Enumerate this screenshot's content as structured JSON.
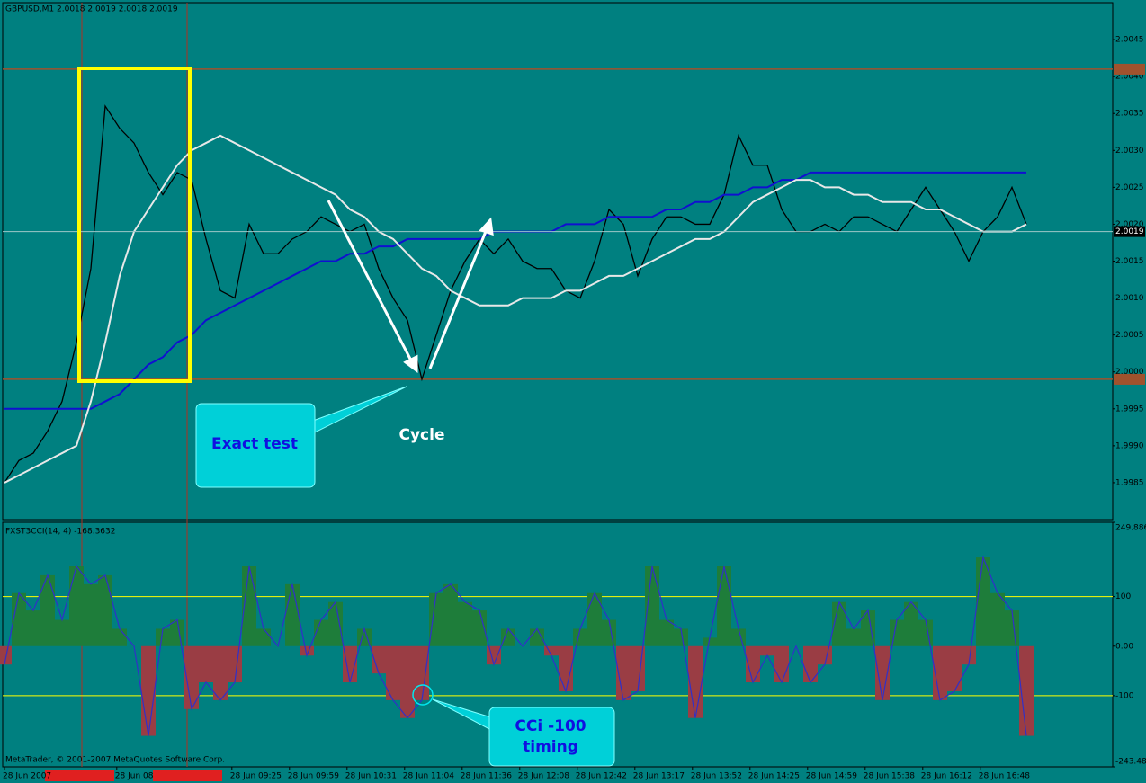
{
  "chart_data": [
    {
      "type": "line",
      "title": "GBPUSD,M1  2.0018 2.0019 2.0018 2.0019",
      "xlim": [
        0,
        77
      ],
      "ylim": [
        1.998,
        2.005
      ],
      "yticks": [
        1.9985,
        {
          "value": 1.999,
          "label": "1.9990"
        },
        1.9995,
        {
          "value": 2,
          "label": "2.0000"
        },
        2.0005,
        {
          "value": 2.001,
          "label": "2.0010"
        },
        2.0015,
        {
          "value": 2.002,
          "label": "2.0020"
        },
        2.0025,
        {
          "value": 2.003,
          "label": "2.0030"
        },
        2.0035,
        {
          "value": 2.004,
          "label": "2.0040"
        },
        2.0045
      ],
      "xticks": [
        {
          "value": 0,
          "label": "28 Jun 2007"
        },
        {
          "value": 7.8,
          "label": "28 Jun 08"
        },
        {
          "value": 15.8,
          "label": "28 Jun 09:25"
        },
        {
          "value": 19.8,
          "label": "28 Jun 09:59"
        },
        {
          "value": 23.8,
          "label": "28 Jun 10:31"
        },
        {
          "value": 27.8,
          "label": "28 Jun 11:04"
        },
        {
          "value": 31.8,
          "label": "28 Jun 11:36"
        },
        {
          "value": 35.8,
          "label": "28 Jun 12:08"
        },
        {
          "value": 39.8,
          "label": "28 Jun 12:42"
        },
        {
          "value": 43.8,
          "label": "28 Jun 13:17"
        },
        {
          "value": 47.8,
          "label": "28 Jun 13:52"
        },
        {
          "value": 51.8,
          "label": "28 Jun 14:25"
        },
        {
          "value": 55.8,
          "label": "28 Jun 14:59"
        },
        {
          "value": 59.8,
          "label": "28 Jun 15:38"
        },
        {
          "value": 63.8,
          "label": "28 Jun 16:12"
        },
        {
          "value": 67.8,
          "label": "28 Jun 16:48"
        }
      ],
      "levels": [
        2.0041,
        1.9999
      ],
      "last_price": 2.0019,
      "annotations": [
        "Exact test",
        "Cycle"
      ],
      "series": [
        {
          "color": "#000000",
          "values": [
            1.9985,
            1.9988,
            1.9989,
            1.9992,
            1.9996,
            2.0004,
            2.0014,
            2.0036,
            2.0033,
            2.0031,
            2.0027,
            2.0024,
            2.0027,
            2.0026,
            2.0018,
            2.0011,
            2.001,
            2.002,
            2.0016,
            2.0016,
            2.0018,
            2.0019,
            2.0021,
            2.002,
            2.0019,
            2.002,
            2.0014,
            2.001,
            2.0007,
            1.9999,
            2.0005,
            2.0011,
            2.0015,
            2.0018,
            2.0016,
            2.0018,
            2.0015,
            2.0014,
            2.0014,
            2.0011,
            2.001,
            2.0015,
            2.0022,
            2.002,
            2.0013,
            2.0018,
            2.0021,
            2.0021,
            2.002,
            2.002,
            2.0024,
            2.0032,
            2.0028,
            2.0028,
            2.0022,
            2.0019,
            2.0019,
            2.002,
            2.0019,
            2.0021,
            2.0021,
            2.002,
            2.0019,
            2.0022,
            2.0025,
            2.0022,
            2.0019,
            2.0015,
            2.0019,
            2.0021,
            2.0025,
            2.002
          ]
        },
        {
          "color": "#1010d0",
          "values": [
            1.9995,
            1.9995,
            1.9995,
            1.9995,
            1.9995,
            1.9995,
            1.9995,
            1.9996,
            1.9997,
            1.9999,
            2.0001,
            2.0002,
            2.0004,
            2.0005,
            2.0007,
            2.0008,
            2.0009,
            2.001,
            2.0011,
            2.0012,
            2.0013,
            2.0014,
            2.0015,
            2.0015,
            2.0016,
            2.0016,
            2.0017,
            2.0017,
            2.0018,
            2.0018,
            2.0018,
            2.0018,
            2.0018,
            2.0018,
            2.0019,
            2.0019,
            2.0019,
            2.0019,
            2.0019,
            2.002,
            2.002,
            2.002,
            2.0021,
            2.0021,
            2.0021,
            2.0021,
            2.0022,
            2.0022,
            2.0023,
            2.0023,
            2.0024,
            2.0024,
            2.0025,
            2.0025,
            2.0026,
            2.0026,
            2.0027,
            2.0027,
            2.0027,
            2.0027,
            2.0027,
            2.0027,
            2.0027,
            2.0027,
            2.0027,
            2.0027,
            2.0027,
            2.0027,
            2.0027,
            2.0027,
            2.0027,
            2.0027
          ]
        },
        {
          "color": "#e8e8e8",
          "values": [
            1.9985,
            1.9986,
            1.9987,
            1.9988,
            1.9989,
            1.999,
            1.9996,
            2.0004,
            2.0013,
            2.0019,
            2.0022,
            2.0025,
            2.0028,
            2.003,
            2.0031,
            2.0032,
            2.0031,
            2.003,
            2.0029,
            2.0028,
            2.0027,
            2.0026,
            2.0025,
            2.0024,
            2.0022,
            2.0021,
            2.0019,
            2.0018,
            2.0016,
            2.0014,
            2.0013,
            2.0011,
            2.001,
            2.0009,
            2.0009,
            2.0009,
            2.001,
            2.001,
            2.001,
            2.0011,
            2.0011,
            2.0012,
            2.0013,
            2.0013,
            2.0014,
            2.0015,
            2.0016,
            2.0017,
            2.0018,
            2.0018,
            2.0019,
            2.0021,
            2.0023,
            2.0024,
            2.0025,
            2.0026,
            2.0026,
            2.0025,
            2.0025,
            2.0024,
            2.0024,
            2.0023,
            2.0023,
            2.0023,
            2.0022,
            2.0022,
            2.0021,
            2.002,
            2.0019,
            2.0019,
            2.0019,
            2.002
          ]
        }
      ]
    },
    {
      "type": "bar",
      "title": "FXST3CCI(14, 4) -168.3632",
      "footer": "MetaTrader, © 2001-2007 MetaQuotes Software Corp.",
      "xlim": [
        0,
        77
      ],
      "ylim": [
        -243.482,
        249.886
      ],
      "yticks": [
        249.886,
        100,
        {
          "value": 0,
          "label": "0.00"
        },
        -100,
        -243.482
      ],
      "levels": [
        100,
        -100
      ],
      "annotations": [
        "CCi -100",
        "timing"
      ],
      "positive_color": "#1e7d3a",
      "negative_color": "#9a3d44",
      "line_color": "#3030c8",
      "values": [
        -37,
        107,
        72,
        143,
        53,
        161,
        125,
        143,
        35,
        0,
        -181,
        35,
        53,
        -127,
        -73,
        -109,
        -73,
        161,
        35,
        0,
        125,
        -19,
        53,
        89,
        -73,
        35,
        -55,
        -109,
        -145,
        -109,
        107,
        125,
        89,
        72,
        -37,
        35,
        0,
        35,
        -19,
        -91,
        35,
        107,
        53,
        -109,
        -91,
        161,
        53,
        35,
        -145,
        17,
        161,
        35,
        -73,
        -19,
        -73,
        0,
        -73,
        -37,
        89,
        35,
        72,
        -109,
        53,
        89,
        53,
        -109,
        -91,
        -37,
        179,
        107,
        72,
        -181
      ]
    }
  ]
}
